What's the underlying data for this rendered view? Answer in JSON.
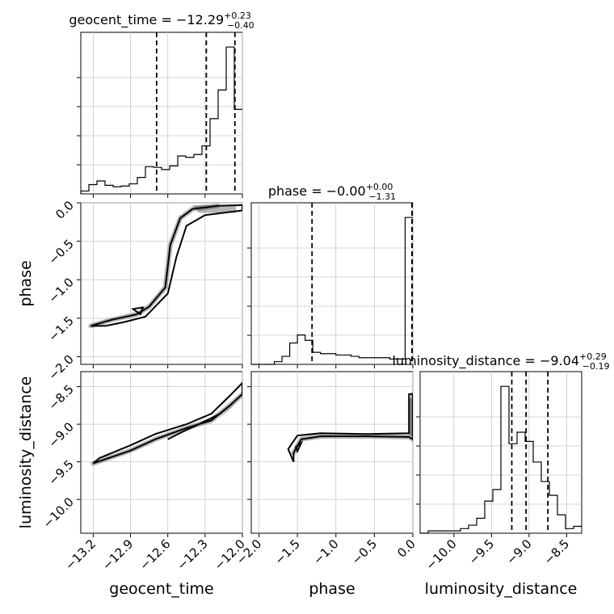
{
  "chart_data": {
    "type": "corner",
    "parameters": [
      "geocent_time",
      "phase",
      "luminosity_distance"
    ],
    "axis_labels": {
      "geocent_time": "geocent_time",
      "phase": "phase",
      "luminosity_distance": "luminosity_distance"
    },
    "ranges": {
      "geocent_time": [
        -13.3,
        -12.0
      ],
      "phase": [
        -2.1,
        0.0
      ],
      "luminosity_distance": [
        -10.45,
        -8.3
      ]
    },
    "ticks": {
      "geocent_time": [
        -13.2,
        -12.9,
        -12.6,
        -12.3,
        -12.0
      ],
      "geocent_time_labels": [
        "−13.2",
        "−12.9",
        "−12.6",
        "−12.3",
        "−12.0"
      ],
      "phase": [
        -2.0,
        -1.5,
        -1.0,
        -0.5,
        0.0
      ],
      "phase_labels": [
        "−2.0",
        "−1.5",
        "−1.0",
        "−0.5",
        "0.0"
      ],
      "luminosity_distance": [
        -10.0,
        -9.5,
        -9.0,
        -8.5
      ],
      "luminosity_distance_labels": [
        "−10.0",
        "−9.5",
        "−9.0",
        "−8.5"
      ]
    },
    "titles": {
      "geocent_time": {
        "text": "geocent_time = −12.29",
        "sup": "+0.23",
        "sub": "−0.40"
      },
      "phase": {
        "text": "phase = −0.00",
        "sup": "+0.00",
        "sub": "−1.31"
      },
      "luminosity_distance": {
        "text": "luminosity_distance = −9.04",
        "sup": "+0.29",
        "sub": "−0.19"
      }
    },
    "quantiles": {
      "geocent_time": [
        -12.69,
        -12.29,
        -12.06
      ],
      "phase": [
        -1.31,
        0.0,
        0.0
      ],
      "luminosity_distance": [
        -9.23,
        -9.04,
        -8.75
      ]
    },
    "histograms": {
      "geocent_time": {
        "edges": [
          -13.3,
          -13.235,
          -13.17,
          -13.105,
          -13.04,
          -12.975,
          -12.91,
          -12.845,
          -12.78,
          -12.715,
          -12.65,
          -12.585,
          -12.52,
          -12.455,
          -12.39,
          -12.325,
          -12.26,
          -12.195,
          -12.13,
          -12.065,
          -12.0
        ],
        "counts": [
          0.04,
          0.13,
          0.18,
          0.12,
          0.1,
          0.11,
          0.14,
          0.23,
          0.38,
          0.37,
          0.34,
          0.39,
          0.53,
          0.51,
          0.55,
          0.67,
          1.05,
          1.45,
          2.05,
          1.18
        ]
      },
      "phase": {
        "edges": [
          -2.1,
          -2.0,
          -1.9,
          -1.8,
          -1.7,
          -1.6,
          -1.5,
          -1.4,
          -1.3,
          -1.2,
          -1.1,
          -1.0,
          -0.9,
          -0.8,
          -0.7,
          -0.6,
          -0.5,
          -0.4,
          -0.3,
          -0.2,
          -0.1,
          0.0
        ],
        "counts": [
          0.0,
          0.0,
          0.0,
          0.02,
          0.06,
          0.16,
          0.22,
          0.18,
          0.09,
          0.08,
          0.08,
          0.07,
          0.07,
          0.06,
          0.05,
          0.05,
          0.05,
          0.05,
          0.04,
          0.04,
          1.1
        ]
      },
      "luminosity_distance": {
        "edges": [
          -10.45,
          -10.3425,
          -10.235,
          -10.1275,
          -10.02,
          -9.9125,
          -9.805,
          -9.6975,
          -9.59,
          -9.4825,
          -9.375,
          -9.2675,
          -9.16,
          -9.0525,
          -8.945,
          -8.8375,
          -8.73,
          -8.6225,
          -8.515,
          -8.4075,
          -8.3
        ],
        "counts": [
          0.0,
          0.02,
          0.02,
          0.02,
          0.02,
          0.04,
          0.07,
          0.13,
          0.28,
          0.38,
          1.28,
          0.78,
          0.88,
          0.8,
          0.62,
          0.45,
          0.33,
          0.16,
          0.04,
          0.06
        ]
      }
    },
    "contours_2d": {
      "phase_vs_geocent_time": {
        "outer": [
          [
            -13.22,
            -1.6
          ],
          [
            -13.05,
            -1.52
          ],
          [
            -12.85,
            -1.45
          ],
          [
            -12.75,
            -1.35
          ],
          [
            -12.62,
            -1.1
          ],
          [
            -12.58,
            -0.55
          ],
          [
            -12.5,
            -0.2
          ],
          [
            -12.4,
            -0.08
          ],
          [
            -12.2,
            -0.04
          ],
          [
            -12.0,
            -0.03
          ],
          [
            -12.0,
            -0.1
          ],
          [
            -12.3,
            -0.16
          ],
          [
            -12.45,
            -0.3
          ],
          [
            -12.53,
            -0.7
          ],
          [
            -12.6,
            -1.18
          ],
          [
            -12.78,
            -1.48
          ],
          [
            -12.95,
            -1.55
          ],
          [
            -13.1,
            -1.6
          ]
        ],
        "inner": [
          [
            -12.88,
            -1.38
          ],
          [
            -12.8,
            -1.36
          ],
          [
            -12.82,
            -1.45
          ]
        ],
        "filled_peak": [
          [
            -12.4,
            -0.03
          ],
          [
            -12.05,
            -0.03
          ],
          [
            -12.05,
            -0.13
          ],
          [
            -12.35,
            -0.13
          ]
        ]
      },
      "luminosity_distance_vs_geocent_time": {
        "outer": [
          [
            -13.2,
            -9.52
          ],
          [
            -12.9,
            -9.35
          ],
          [
            -12.7,
            -9.2
          ],
          [
            -12.45,
            -9.05
          ],
          [
            -12.25,
            -8.95
          ],
          [
            -12.1,
            -8.75
          ],
          [
            -12.0,
            -8.6
          ],
          [
            -12.0,
            -8.45
          ],
          [
            -12.1,
            -8.62
          ],
          [
            -12.25,
            -8.86
          ],
          [
            -12.45,
            -9.0
          ],
          [
            -12.7,
            -9.13
          ],
          [
            -12.9,
            -9.28
          ],
          [
            -13.15,
            -9.45
          ]
        ],
        "inner": [
          [
            -12.6,
            -9.2
          ],
          [
            -12.48,
            -9.1
          ],
          [
            -12.35,
            -9.0
          ],
          [
            -12.18,
            -8.86
          ],
          [
            -12.1,
            -8.75
          ]
        ],
        "filled_peak": [
          [
            -12.2,
            -8.95
          ],
          [
            -12.05,
            -8.7
          ],
          [
            -12.0,
            -8.6
          ],
          [
            -12.1,
            -8.8
          ]
        ]
      },
      "luminosity_distance_vs_phase": {
        "outer": [
          [
            -1.55,
            -9.38
          ],
          [
            -1.45,
            -9.2
          ],
          [
            -1.2,
            -9.16
          ],
          [
            -0.6,
            -9.16
          ],
          [
            -0.05,
            -9.17
          ],
          [
            0.0,
            -9.2
          ],
          [
            0.0,
            -8.6
          ],
          [
            -0.05,
            -8.6
          ],
          [
            -0.05,
            -9.12
          ],
          [
            -0.6,
            -9.13
          ],
          [
            -1.2,
            -9.12
          ],
          [
            -1.5,
            -9.15
          ],
          [
            -1.62,
            -9.33
          ],
          [
            -1.55,
            -9.5
          ]
        ],
        "inner": [
          [
            -1.52,
            -9.3
          ],
          [
            -1.45,
            -9.25
          ],
          [
            -1.5,
            -9.36
          ]
        ],
        "filled_peak": [
          [
            -0.05,
            -8.65
          ],
          [
            0.0,
            -8.65
          ],
          [
            0.0,
            -9.15
          ],
          [
            -0.05,
            -9.15
          ]
        ]
      }
    }
  }
}
